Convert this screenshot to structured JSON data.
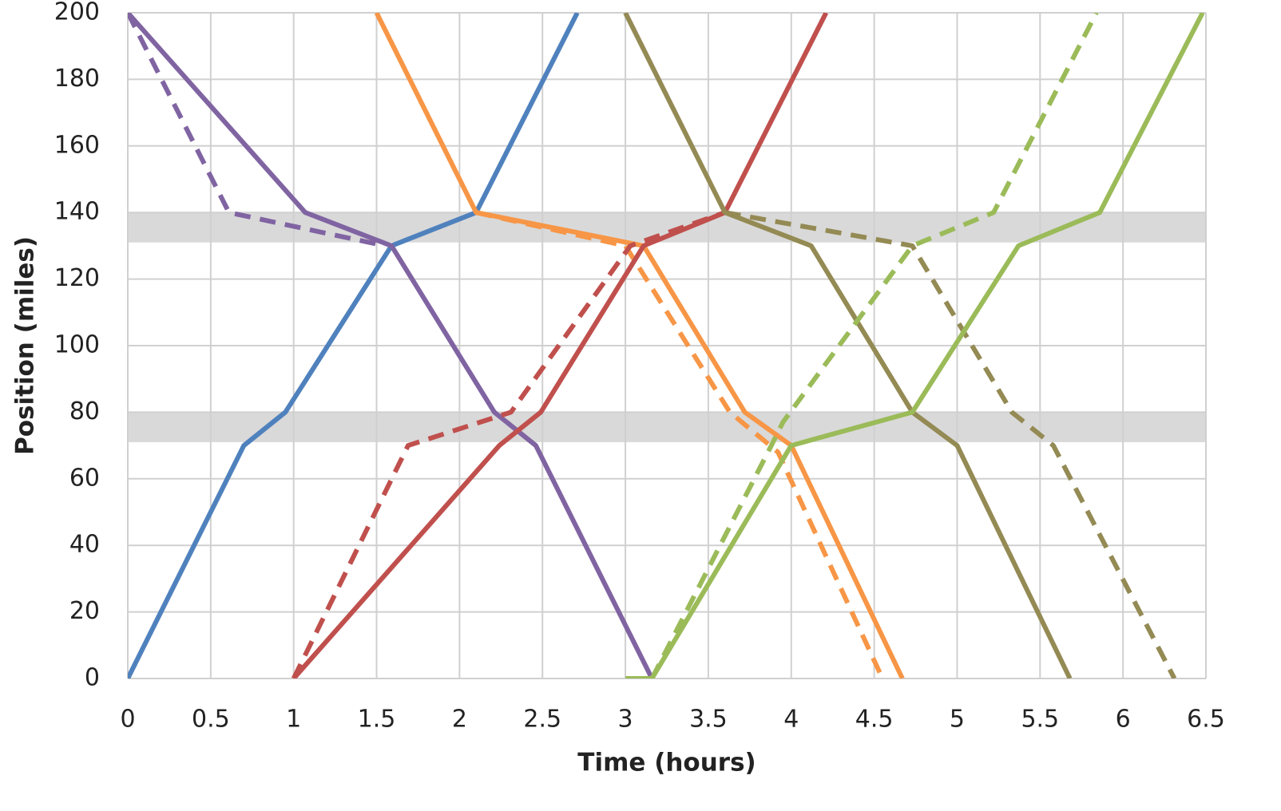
{
  "chart_data": {
    "type": "line",
    "x_label": "Time (hours)",
    "y_label": "Position (miles)",
    "xlim": [
      0,
      6.5
    ],
    "xticks": [
      0,
      0.5,
      1,
      1.5,
      2,
      2.5,
      3,
      3.5,
      4,
      4.5,
      5,
      5.5,
      6,
      6.5
    ],
    "ylim": [
      0,
      200
    ],
    "yticks": [
      0,
      20,
      40,
      60,
      80,
      100,
      120,
      140,
      160,
      180,
      200
    ],
    "grid": true,
    "bands": [
      {
        "from": 131,
        "to": 140,
        "color": "#d9d9d9"
      },
      {
        "from": 71,
        "to": 80,
        "color": "#d9d9d9"
      }
    ],
    "series": [
      {
        "color": "#4f81bd",
        "dashed": false,
        "x": [
          0,
          0.7,
          0.95,
          1.59,
          2.1,
          2.71
        ],
        "values": [
          0,
          70,
          80,
          130,
          140,
          200
        ]
      },
      {
        "color": "#8064a2",
        "dashed": false,
        "x": [
          0,
          1.07,
          1.59,
          2.21,
          2.46,
          3.16
        ],
        "values": [
          200,
          140,
          130,
          80,
          70,
          0
        ]
      },
      {
        "color": "#8064a2",
        "dashed": true,
        "x": [
          0,
          0.61,
          1.55
        ],
        "values": [
          200,
          140,
          130
        ]
      },
      {
        "color": "#f79646",
        "dashed": false,
        "x": [
          1.5,
          2.1,
          3.11,
          3.72,
          4.0,
          4.67
        ],
        "values": [
          200,
          140,
          130,
          80,
          70,
          0
        ]
      },
      {
        "color": "#f79646",
        "dashed": true,
        "x": [
          2.1,
          3.0,
          3.63,
          3.92,
          4.55
        ],
        "values": [
          140,
          130,
          80,
          68,
          0
        ]
      },
      {
        "color": "#c0504d",
        "dashed": false,
        "x": [
          1.0,
          2.24,
          2.49,
          3.11,
          3.6,
          4.21
        ],
        "values": [
          0,
          70,
          80,
          130,
          140,
          200
        ]
      },
      {
        "color": "#c0504d",
        "dashed": true,
        "x": [
          1.0,
          1.69,
          2.31,
          3.03,
          3.6
        ],
        "values": [
          0,
          70,
          80,
          130,
          140
        ]
      },
      {
        "color": "#948a54",
        "dashed": false,
        "x": [
          3.0,
          3.6,
          4.12,
          4.73,
          5.0,
          5.68
        ],
        "values": [
          200,
          140,
          130,
          80,
          70,
          0
        ]
      },
      {
        "color": "#948a54",
        "dashed": true,
        "x": [
          3.6,
          4.73,
          5.33,
          5.58,
          6.31
        ],
        "values": [
          140,
          130,
          80,
          70,
          0
        ]
      },
      {
        "color": "#9bbb59",
        "dashed": false,
        "x": [
          3.0,
          3.16,
          4.0,
          4.73,
          5.37,
          5.86,
          6.48
        ],
        "values": [
          0,
          0,
          70,
          80,
          130,
          140,
          200
        ]
      },
      {
        "color": "#9bbb59",
        "dashed": true,
        "x": [
          3.16,
          3.88,
          3.95,
          4.73,
          5.22,
          5.84
        ],
        "values": [
          0,
          70,
          77,
          130,
          140,
          200
        ]
      }
    ]
  }
}
